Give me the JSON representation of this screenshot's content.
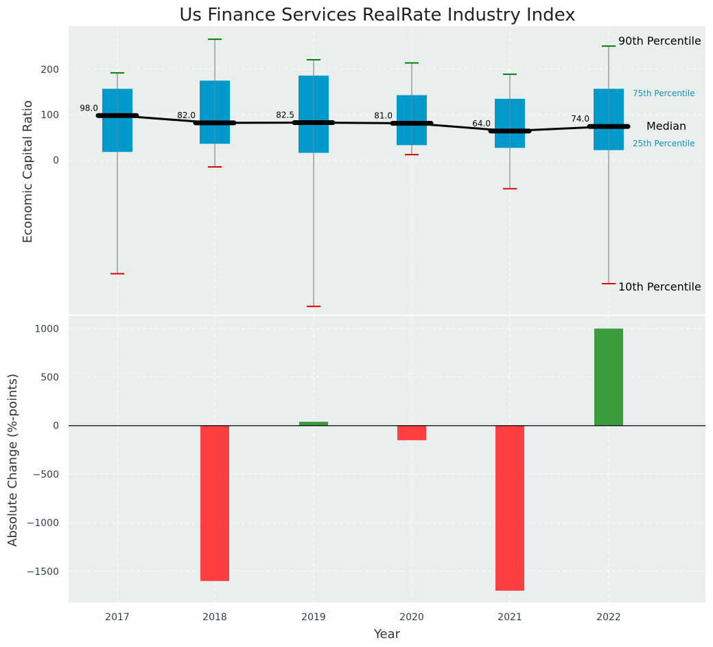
{
  "chart_data": [
    {
      "type": "box",
      "title": "Us Finance Services RealRate Industry Index",
      "ylabel": "Economic Capital Ratio",
      "years": [
        "2017",
        "2018",
        "2019",
        "2020",
        "2021",
        "2022"
      ],
      "yticks": [
        "0",
        "100",
        "200"
      ],
      "ylim": [
        -340,
        295
      ],
      "p10": [
        -250,
        -15,
        -322,
        12,
        -63,
        -272
      ],
      "p25": [
        18,
        36,
        16,
        33,
        27,
        22
      ],
      "median": [
        98.0,
        82.0,
        82.5,
        81.0,
        64.0,
        74.0
      ],
      "median_labels": [
        "98.0",
        "82.0",
        "82.5",
        "81.0",
        "64.0",
        "74.0"
      ],
      "p75": [
        157,
        175,
        186,
        143,
        135,
        157
      ],
      "p90": [
        192,
        266,
        221,
        214,
        189,
        251
      ],
      "legend": {
        "p90": "90th Percentile",
        "p75": "75th Percentile",
        "median": "Median",
        "p25": "25th Percentile",
        "p10": "10th Percentile"
      },
      "colors": {
        "box": "#0099cc",
        "whisker_top": "#008000",
        "whisker_bottom": "#dd0000",
        "median": "#000000",
        "bg": "#ebeeee",
        "label": "#0099bb"
      },
      "grid": true
    },
    {
      "type": "bar",
      "xlabel": "Year",
      "ylabel": "Absolute Change (%-points)",
      "categories": [
        "2017",
        "2018",
        "2019",
        "2020",
        "2021",
        "2022"
      ],
      "values": [
        0,
        -1600,
        40,
        -150,
        -1700,
        1000
      ],
      "yticks": [
        "1000",
        "500",
        "0",
        "−500",
        "−1000",
        "−1500"
      ],
      "ytick_values": [
        1000,
        500,
        0,
        -500,
        -1000,
        -1500
      ],
      "ylim": [
        -1820,
        1130
      ],
      "colors": {
        "positive": "#3a9c3a",
        "negative": "#ff4040"
      },
      "grid": true
    }
  ]
}
